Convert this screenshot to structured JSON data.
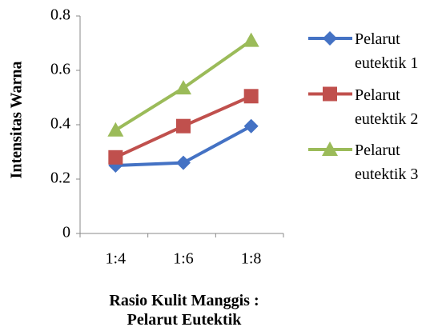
{
  "chart_data": {
    "type": "line",
    "y_label": "Intensitas Warna",
    "x_label": "Rasio Kulit Manggis : Pelarut Eutektik",
    "categories": [
      "1:4",
      "1:6",
      "1:8"
    ],
    "series": [
      {
        "name": "Pelarut eutektik 1",
        "color": "#4472c4",
        "marker": "diamond",
        "values": [
          0.25,
          0.26,
          0.395
        ]
      },
      {
        "name": "Pelarut eutektik 2",
        "color": "#c0504d",
        "marker": "square",
        "values": [
          0.28,
          0.395,
          0.505
        ]
      },
      {
        "name": "Pelarut eutektik 3",
        "color": "#9bbb59",
        "marker": "triangle",
        "values": [
          0.38,
          0.535,
          0.71
        ]
      }
    ],
    "ylim": [
      0,
      0.8
    ],
    "yticks": [
      0,
      0.2,
      0.4,
      0.6,
      0.8
    ],
    "legend": "right"
  }
}
